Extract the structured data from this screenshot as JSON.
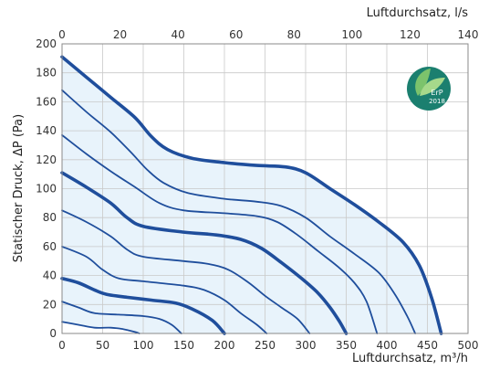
{
  "chart_data": {
    "type": "line",
    "xlabel": "Luftdurchsatz, m³/h",
    "x2label": "Luftdurchsatz, l/s",
    "ylabel": "Statischer Druck, ΔP (Pa)",
    "xlim": [
      0,
      500
    ],
    "x2lim": [
      0,
      140
    ],
    "ylim": [
      0,
      200
    ],
    "xticks": [
      "0",
      "50",
      "100",
      "150",
      "200",
      "250",
      "300",
      "350",
      "400",
      "450",
      "500"
    ],
    "x2ticks": [
      "0",
      "20",
      "40",
      "60",
      "80",
      "100",
      "120",
      "140"
    ],
    "yticks": [
      "0",
      "20",
      "40",
      "60",
      "80",
      "100",
      "120",
      "140",
      "160",
      "180",
      "200"
    ],
    "grid": true,
    "area_fill_color": "#e8f3fb",
    "line_color": "#1f4e9c",
    "series": [
      {
        "bold": true,
        "points": [
          [
            0,
            191
          ],
          [
            30,
            177
          ],
          [
            60,
            163
          ],
          [
            90,
            149
          ],
          [
            110,
            136
          ],
          [
            130,
            127
          ],
          [
            160,
            121
          ],
          [
            200,
            118
          ],
          [
            240,
            116
          ],
          [
            275,
            115
          ],
          [
            300,
            111
          ],
          [
            330,
            100
          ],
          [
            360,
            89
          ],
          [
            390,
            77
          ],
          [
            420,
            63
          ],
          [
            440,
            47
          ],
          [
            455,
            25
          ],
          [
            467,
            0
          ]
        ]
      },
      {
        "bold": false,
        "points": [
          [
            0,
            168
          ],
          [
            30,
            153
          ],
          [
            60,
            139
          ],
          [
            85,
            125
          ],
          [
            105,
            113
          ],
          [
            125,
            104
          ],
          [
            155,
            97
          ],
          [
            200,
            93
          ],
          [
            240,
            91
          ],
          [
            270,
            88
          ],
          [
            300,
            80
          ],
          [
            330,
            67
          ],
          [
            360,
            55
          ],
          [
            390,
            42
          ],
          [
            410,
            27
          ],
          [
            425,
            12
          ],
          [
            435,
            0
          ]
        ]
      },
      {
        "bold": false,
        "points": [
          [
            0,
            137
          ],
          [
            30,
            124
          ],
          [
            60,
            112
          ],
          [
            90,
            101
          ],
          [
            120,
            90
          ],
          [
            150,
            85
          ],
          [
            200,
            83
          ],
          [
            240,
            81
          ],
          [
            265,
            77
          ],
          [
            290,
            68
          ],
          [
            315,
            57
          ],
          [
            340,
            46
          ],
          [
            360,
            35
          ],
          [
            375,
            22
          ],
          [
            388,
            0
          ]
        ]
      },
      {
        "bold": true,
        "points": [
          [
            0,
            111
          ],
          [
            30,
            101
          ],
          [
            60,
            90
          ],
          [
            80,
            80
          ],
          [
            100,
            74
          ],
          [
            150,
            70
          ],
          [
            190,
            68
          ],
          [
            220,
            65
          ],
          [
            245,
            59
          ],
          [
            270,
            49
          ],
          [
            295,
            38
          ],
          [
            315,
            28
          ],
          [
            330,
            18
          ],
          [
            342,
            8
          ],
          [
            350,
            0
          ]
        ]
      },
      {
        "bold": false,
        "points": [
          [
            0,
            85
          ],
          [
            30,
            77
          ],
          [
            60,
            67
          ],
          [
            80,
            58
          ],
          [
            100,
            53
          ],
          [
            150,
            50
          ],
          [
            180,
            48
          ],
          [
            205,
            44
          ],
          [
            230,
            35
          ],
          [
            250,
            26
          ],
          [
            270,
            18
          ],
          [
            290,
            10
          ],
          [
            305,
            0
          ]
        ]
      },
      {
        "bold": false,
        "points": [
          [
            0,
            60
          ],
          [
            30,
            53
          ],
          [
            50,
            44
          ],
          [
            70,
            38
          ],
          [
            100,
            36
          ],
          [
            150,
            33
          ],
          [
            175,
            30
          ],
          [
            200,
            23
          ],
          [
            220,
            14
          ],
          [
            240,
            6
          ],
          [
            252,
            0
          ]
        ]
      },
      {
        "bold": true,
        "points": [
          [
            0,
            38
          ],
          [
            20,
            35
          ],
          [
            40,
            30
          ],
          [
            55,
            27
          ],
          [
            80,
            25
          ],
          [
            110,
            23
          ],
          [
            140,
            21
          ],
          [
            160,
            17
          ],
          [
            185,
            9
          ],
          [
            200,
            0
          ]
        ]
      },
      {
        "bold": false,
        "points": [
          [
            0,
            22
          ],
          [
            20,
            18
          ],
          [
            40,
            14
          ],
          [
            70,
            13
          ],
          [
            100,
            12
          ],
          [
            120,
            10
          ],
          [
            135,
            6
          ],
          [
            147,
            0
          ]
        ]
      },
      {
        "bold": false,
        "points": [
          [
            0,
            8
          ],
          [
            20,
            6
          ],
          [
            40,
            4
          ],
          [
            60,
            4
          ],
          [
            75,
            3
          ],
          [
            90,
            1
          ],
          [
            95,
            0
          ]
        ]
      }
    ]
  },
  "badge": {
    "label": "ErP",
    "year": "2018",
    "color": "#1b7f6f"
  }
}
